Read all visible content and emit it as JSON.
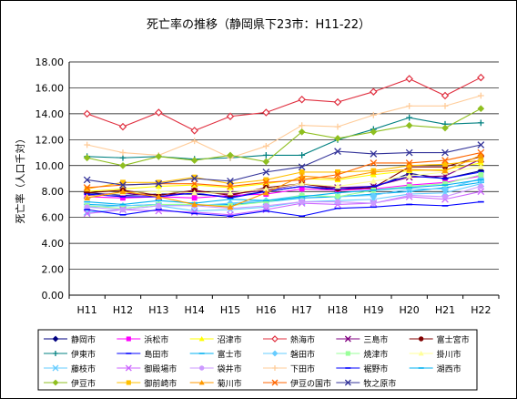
{
  "chart_data": {
    "type": "line",
    "title": "死亡率の推移（静岡県下23市：H11-22）",
    "ylabel": "死亡率（人口千対）",
    "xlabel": "",
    "ylim": [
      0,
      18
    ],
    "yticks": [
      "0.00",
      "2.00",
      "4.00",
      "6.00",
      "8.00",
      "10.00",
      "12.00",
      "14.00",
      "16.00",
      "18.00"
    ],
    "categories": [
      "H11",
      "H12",
      "H13",
      "H14",
      "H15",
      "H16",
      "H17",
      "H18",
      "H19",
      "H20",
      "H21",
      "H22"
    ],
    "grid": "horizontal",
    "legend_position": "bottom",
    "series": [
      {
        "name": "静岡市",
        "color": "#000080",
        "marker": "diamond",
        "values": [
          7.9,
          7.7,
          7.8,
          7.8,
          7.6,
          8.0,
          8.4,
          8.1,
          8.3,
          9.4,
          9.0,
          9.6
        ]
      },
      {
        "name": "浜松市",
        "color": "#ff00ff",
        "marker": "square",
        "values": [
          7.6,
          7.5,
          7.6,
          7.5,
          7.7,
          7.8,
          8.2,
          8.1,
          8.2,
          8.5,
          8.7,
          9.2
        ]
      },
      {
        "name": "沼津市",
        "color": "#ffff00",
        "marker": "triangle",
        "values": [
          8.0,
          8.2,
          8.4,
          8.5,
          8.3,
          8.6,
          9.0,
          8.9,
          9.3,
          9.6,
          9.7,
          10.2
        ]
      },
      {
        "name": "熱海市",
        "color": "#e03040",
        "marker": "diamond-open",
        "values": [
          14.0,
          13.0,
          14.1,
          12.7,
          13.8,
          14.1,
          15.1,
          14.9,
          15.7,
          16.7,
          15.4,
          16.8
        ]
      },
      {
        "name": "三島市",
        "color": "#800080",
        "marker": "x",
        "values": [
          7.7,
          7.9,
          7.6,
          8.0,
          7.8,
          8.1,
          8.6,
          8.3,
          8.4,
          9.1,
          9.2,
          10.5
        ]
      },
      {
        "name": "富士宮市",
        "color": "#800000",
        "marker": "circle",
        "values": [
          7.9,
          8.1,
          7.7,
          8.1,
          7.7,
          8.3,
          8.6,
          8.2,
          8.3,
          9.9,
          9.9,
          10.7
        ]
      },
      {
        "name": "伊東市",
        "color": "#008080",
        "marker": "plus",
        "values": [
          10.7,
          10.6,
          10.7,
          10.5,
          10.6,
          10.8,
          10.8,
          12.0,
          12.8,
          13.7,
          13.2,
          13.3
        ]
      },
      {
        "name": "島田市",
        "color": "#0000ff",
        "marker": "dash",
        "values": [
          7.8,
          7.6,
          7.6,
          7.9,
          7.5,
          8.0,
          8.4,
          8.2,
          8.4,
          9.2,
          9.0,
          9.5
        ]
      },
      {
        "name": "富士市",
        "color": "#00b0f0",
        "marker": "dash",
        "values": [
          7.0,
          6.9,
          7.0,
          6.9,
          7.0,
          7.2,
          7.5,
          7.6,
          7.8,
          8.0,
          8.3,
          8.7
        ]
      },
      {
        "name": "磐田市",
        "color": "#66ccff",
        "marker": "diamond",
        "values": [
          6.8,
          6.9,
          7.0,
          6.9,
          7.1,
          7.3,
          7.7,
          7.6,
          7.7,
          8.2,
          8.2,
          9.0
        ]
      },
      {
        "name": "焼津市",
        "color": "#99ff99",
        "marker": "square",
        "values": [
          6.9,
          6.7,
          7.0,
          7.0,
          6.9,
          7.2,
          7.7,
          7.6,
          8.1,
          8.4,
          8.6,
          9.3
        ]
      },
      {
        "name": "掛川市",
        "color": "#ffff99",
        "marker": "triangle",
        "values": [
          7.6,
          7.9,
          8.0,
          7.9,
          7.9,
          8.2,
          8.6,
          8.4,
          8.8,
          9.2,
          9.5,
          9.9
        ]
      },
      {
        "name": "藤枝市",
        "color": "#66ccff",
        "marker": "x",
        "values": [
          6.4,
          6.6,
          6.9,
          6.5,
          6.6,
          6.8,
          7.2,
          7.3,
          7.4,
          7.8,
          7.9,
          8.6
        ]
      },
      {
        "name": "御殿場市",
        "color": "#cc66ff",
        "marker": "x",
        "values": [
          6.3,
          6.6,
          6.5,
          6.4,
          6.2,
          6.6,
          7.1,
          7.0,
          7.1,
          7.6,
          7.4,
          8.0
        ]
      },
      {
        "name": "袋井市",
        "color": "#cc99ff",
        "marker": "circle",
        "values": [
          6.8,
          6.6,
          6.9,
          6.9,
          6.7,
          6.9,
          7.2,
          7.2,
          7.1,
          7.7,
          7.6,
          8.4
        ]
      },
      {
        "name": "下田市",
        "color": "#ffcc99",
        "marker": "plus",
        "values": [
          11.6,
          11.0,
          10.8,
          11.9,
          10.6,
          11.5,
          13.1,
          13.0,
          13.9,
          14.6,
          14.6,
          15.4
        ]
      },
      {
        "name": "裾野市",
        "color": "#0000ff",
        "marker": "dash",
        "values": [
          6.6,
          6.2,
          6.6,
          6.3,
          6.1,
          6.5,
          6.1,
          6.7,
          6.8,
          7.0,
          6.9,
          7.2
        ]
      },
      {
        "name": "湖西市",
        "color": "#00b0f0",
        "marker": "dash",
        "values": [
          7.2,
          7.0,
          7.3,
          7.1,
          7.4,
          7.3,
          7.6,
          7.9,
          8.1,
          8.3,
          8.5,
          8.9
        ]
      },
      {
        "name": "伊豆市",
        "color": "#8fbf20",
        "marker": "diamond",
        "values": [
          10.6,
          10.0,
          10.7,
          10.4,
          10.8,
          10.3,
          12.6,
          12.1,
          12.6,
          13.1,
          12.9,
          14.4
        ]
      },
      {
        "name": "御前崎市",
        "color": "#ffc000",
        "marker": "square",
        "values": [
          8.2,
          8.7,
          8.7,
          9.1,
          8.6,
          8.9,
          9.5,
          9.5,
          9.6,
          10.0,
          10.1,
          10.4
        ]
      },
      {
        "name": "菊川市",
        "color": "#ff9900",
        "marker": "triangle",
        "values": [
          7.5,
          8.0,
          7.6,
          7.0,
          6.8,
          7.9,
          9.2,
          9.0,
          9.5,
          9.7,
          9.6,
          10.8
        ]
      },
      {
        "name": "伊豆の国市",
        "color": "#ff6600",
        "marker": "x",
        "values": [
          8.3,
          8.5,
          8.6,
          8.6,
          8.4,
          8.7,
          8.9,
          9.3,
          10.2,
          10.2,
          10.4,
          11.0
        ]
      },
      {
        "name": "牧之原市",
        "color": "#333399",
        "marker": "x",
        "values": [
          8.9,
          8.5,
          8.6,
          9.0,
          8.8,
          9.5,
          9.9,
          11.1,
          10.9,
          11.0,
          11.0,
          11.6
        ]
      }
    ]
  }
}
